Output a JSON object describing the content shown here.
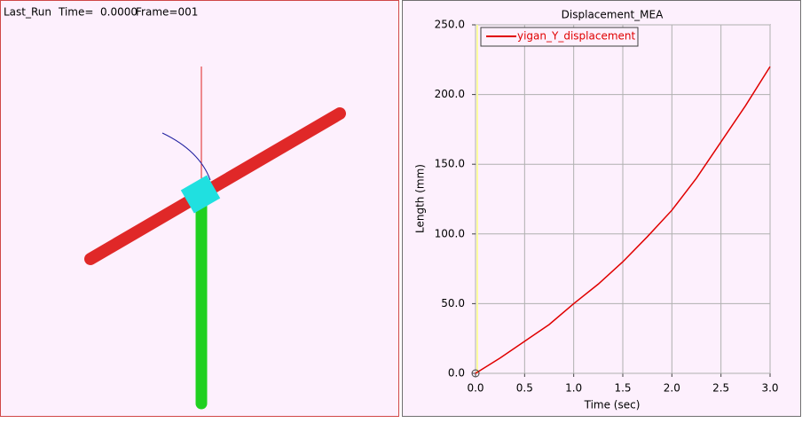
{
  "viewport": {
    "run": "Last_Run",
    "time": "Time=  0.0000",
    "frame": "Frame=001"
  },
  "chart_data": {
    "type": "line",
    "title": "Displacement_MEA",
    "x_label": "Time (sec)",
    "y_label": "Length (mm)",
    "x": [
      0,
      0.25,
      0.5,
      0.75,
      1.0,
      1.25,
      1.5,
      1.75,
      2.0,
      2.25,
      2.5,
      2.75,
      3.0
    ],
    "series": [
      {
        "name": "yigan_Y_displacement",
        "color": "#e00000",
        "values": [
          0,
          11,
          23,
          35,
          50,
          64,
          80,
          98,
          117,
          140,
          166,
          192,
          220
        ]
      }
    ],
    "xlim": [
      0,
      3
    ],
    "ylim": [
      0,
      250
    ],
    "xticks": [
      {
        "value": 0,
        "label": "0.0"
      },
      {
        "value": 0.5,
        "label": "0.5"
      },
      {
        "value": 1,
        "label": "1.0"
      },
      {
        "value": 1.5,
        "label": "1.5"
      },
      {
        "value": 2,
        "label": "2.0"
      },
      {
        "value": 2.5,
        "label": "2.5"
      },
      {
        "value": 3,
        "label": "3.0"
      }
    ],
    "yticks": [
      {
        "value": 0,
        "label": "0.0"
      },
      {
        "value": 50,
        "label": "50.0"
      },
      {
        "value": 100,
        "label": "100.0"
      },
      {
        "value": 150,
        "label": "150.0"
      },
      {
        "value": 200,
        "label": "200.0"
      },
      {
        "value": 250,
        "label": "250.0"
      }
    ],
    "grid": true,
    "legend": "top-left"
  }
}
